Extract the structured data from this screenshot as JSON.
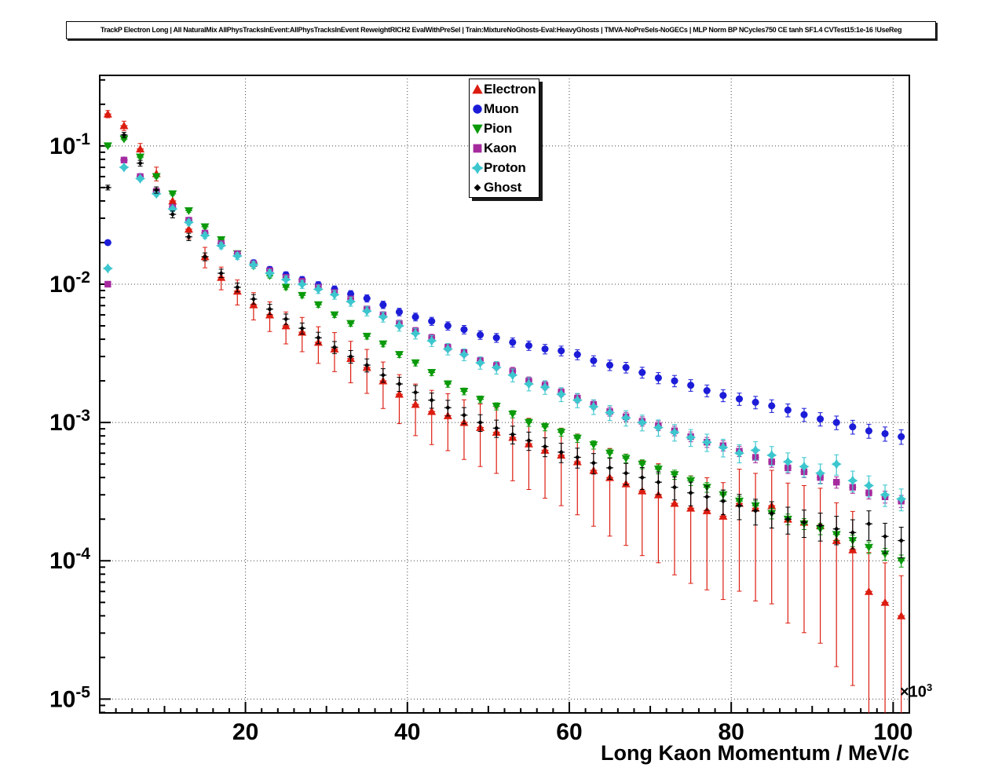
{
  "chart_data": {
    "type": "scatter",
    "title": "TrackP Electron Long | All NaturalMix AllPhysTracksInEvent:AllPhysTracksInEvent ReweightRICH2 EvalWithPreSel | Train:MixtureNoGhosts-Eval:HeavyGhosts | TMVA-NoPreSels-NoGECs | MLP Norm BP NCycles750 CE tanh SF1.4 CVTest15:1e-16 !UseReg",
    "xlabel": "Long Kaon Momentum / MeV/c",
    "ylabel": "",
    "x_multiplier": {
      "base": "×10",
      "exp": "3"
    },
    "x_units_note": "x values in units of 10^3 MeV/c",
    "xlim": [
      2,
      102
    ],
    "ylog_range": [
      -5.1,
      -0.49
    ],
    "x_ticks": [
      20,
      40,
      60,
      80,
      100
    ],
    "y_tick_exponents": [
      -1,
      -2,
      -3,
      -4,
      -5
    ],
    "grid": "dotted",
    "legend_position": "top-center",
    "x": [
      3,
      5,
      7,
      9,
      11,
      13,
      15,
      17,
      19,
      21,
      23,
      25,
      27,
      29,
      31,
      33,
      35,
      37,
      39,
      41,
      43,
      45,
      47,
      49,
      51,
      53,
      55,
      57,
      59,
      61,
      63,
      65,
      67,
      69,
      71,
      73,
      75,
      77,
      79,
      81,
      83,
      85,
      87,
      89,
      91,
      93,
      95,
      97,
      99,
      101
    ],
    "series": [
      {
        "name": "Electron",
        "color": "#dc1c10",
        "marker": "triangle-up",
        "err_frac": [
          0.06,
          0.95
        ],
        "y": [
          0.17,
          0.14,
          0.095,
          0.063,
          0.04,
          0.025,
          0.0158,
          0.0112,
          0.0089,
          0.0071,
          0.006,
          0.005,
          0.0045,
          0.0038,
          0.0034,
          0.0029,
          0.0025,
          0.002,
          0.0016,
          0.00135,
          0.0012,
          0.00112,
          0.001,
          0.00092,
          0.00085,
          0.00078,
          0.0007,
          0.00063,
          0.00058,
          0.00052,
          0.00045,
          0.0004,
          0.00036,
          0.00032,
          0.0003,
          0.00026,
          0.00024,
          0.00023,
          0.00021,
          0.00026,
          0.00024,
          0.00025,
          0.0002,
          0.00019,
          0.00018,
          0.00014,
          0.00012,
          6e-05,
          5e-05,
          4e-05
        ]
      },
      {
        "name": "Muon",
        "color": "#1c1cd8",
        "marker": "circle",
        "err_frac": [
          0.03,
          0.12
        ],
        "y": [
          0.02,
          0.079,
          0.06,
          0.046,
          0.036,
          0.029,
          0.0234,
          0.0197,
          0.0166,
          0.0143,
          0.0128,
          0.0117,
          0.0108,
          0.0099,
          0.0092,
          0.0085,
          0.0079,
          0.0071,
          0.0063,
          0.0058,
          0.0054,
          0.005,
          0.0047,
          0.0043,
          0.0041,
          0.0038,
          0.0036,
          0.0034,
          0.0033,
          0.0031,
          0.0028,
          0.0026,
          0.0025,
          0.0023,
          0.0021,
          0.002,
          0.00186,
          0.0017,
          0.00157,
          0.00148,
          0.0014,
          0.00132,
          0.00123,
          0.00114,
          0.00106,
          0.001,
          0.00093,
          0.00087,
          0.00083,
          0.00079
        ]
      },
      {
        "name": "Pion",
        "color": "#0a9a0a",
        "marker": "triangle-down",
        "err_frac": [
          0.02,
          0.1
        ],
        "y": [
          0.1,
          0.112,
          0.083,
          0.06,
          0.045,
          0.034,
          0.026,
          0.021,
          0.0166,
          0.0135,
          0.0115,
          0.0095,
          0.0083,
          0.0071,
          0.006,
          0.0052,
          0.0042,
          0.0037,
          0.0031,
          0.0027,
          0.0023,
          0.0019,
          0.00168,
          0.00147,
          0.00131,
          0.00115,
          0.001,
          0.00093,
          0.00085,
          0.00077,
          0.00069,
          0.0006,
          0.00055,
          0.0005,
          0.00046,
          0.00042,
          0.00038,
          0.00034,
          0.0003,
          0.00027,
          0.00025,
          0.00022,
          0.0002,
          0.000185,
          0.00017,
          0.000155,
          0.00014,
          0.000125,
          0.000112,
          0.0001
        ]
      },
      {
        "name": "Kaon",
        "color": "#a62a9e",
        "marker": "square",
        "err_frac": [
          0.03,
          0.1
        ],
        "y": [
          0.01,
          0.079,
          0.06,
          0.047,
          0.036,
          0.029,
          0.0234,
          0.0197,
          0.0166,
          0.0141,
          0.0125,
          0.0112,
          0.0105,
          0.0095,
          0.0087,
          0.0078,
          0.0066,
          0.006,
          0.0052,
          0.0046,
          0.0041,
          0.0035,
          0.0032,
          0.0028,
          0.00258,
          0.00235,
          0.002,
          0.00186,
          0.00166,
          0.0015,
          0.00135,
          0.0012,
          0.0011,
          0.00102,
          0.00095,
          0.00087,
          0.00079,
          0.00072,
          0.00068,
          0.00062,
          0.00056,
          0.00052,
          0.00047,
          0.00044,
          0.0004,
          0.00037,
          0.00034,
          0.00031,
          0.00029,
          0.00027
        ]
      },
      {
        "name": "Proton",
        "color": "#3cc6ce",
        "marker": "star",
        "err_frac": [
          0.03,
          0.18
        ],
        "y": [
          0.013,
          0.07,
          0.058,
          0.045,
          0.035,
          0.028,
          0.0225,
          0.019,
          0.016,
          0.0138,
          0.012,
          0.0108,
          0.01,
          0.0092,
          0.0084,
          0.0075,
          0.0064,
          0.0058,
          0.005,
          0.0044,
          0.0039,
          0.0034,
          0.0031,
          0.0027,
          0.0025,
          0.0022,
          0.0019,
          0.0018,
          0.0016,
          0.00145,
          0.0013,
          0.00118,
          0.00108,
          0.001,
          0.00092,
          0.00085,
          0.00078,
          0.00072,
          0.00066,
          0.0006,
          0.00063,
          0.00058,
          0.00052,
          0.00048,
          0.00043,
          0.0005,
          0.00038,
          0.00035,
          0.0003,
          0.00028
        ]
      },
      {
        "name": "Ghost",
        "color": "#000000",
        "marker": "diamond",
        "err_frac": [
          0.04,
          0.25
        ],
        "y": [
          0.05,
          0.12,
          0.075,
          0.048,
          0.032,
          0.022,
          0.0158,
          0.012,
          0.0095,
          0.0078,
          0.0066,
          0.0056,
          0.0048,
          0.0041,
          0.0035,
          0.003,
          0.0026,
          0.0022,
          0.0019,
          0.00165,
          0.00145,
          0.00128,
          0.00113,
          0.001,
          0.00091,
          0.00082,
          0.00074,
          0.00067,
          0.00061,
          0.00056,
          0.00051,
          0.00047,
          0.00043,
          0.0004,
          0.00037,
          0.00034,
          0.00031,
          0.00029,
          0.00027,
          0.00025,
          0.00023,
          0.00022,
          0.0002,
          0.00019,
          0.00018,
          0.00017,
          0.00016,
          0.000185,
          0.00015,
          0.00014
        ]
      }
    ]
  }
}
